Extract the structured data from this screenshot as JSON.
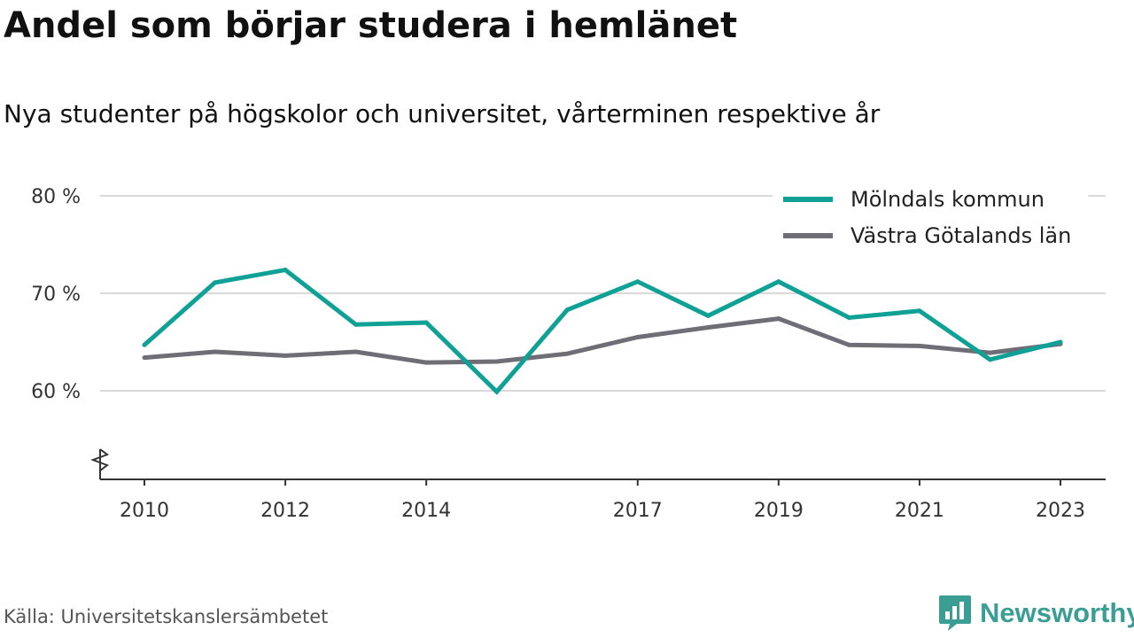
{
  "header": {
    "title": "Andel som börjar studera i hemlänet",
    "subtitle": "Nya studenter på högskolor och universitet, vårterminen respektive år"
  },
  "footer": {
    "source": "Källa: Universitetskanslersämbetet",
    "brand": "Newsworthy",
    "brand_icon": "bar-chart-speech-bubble-icon"
  },
  "colors": {
    "molndal": "#0fa096",
    "vgr": "#6f6e76",
    "grid": "#d9d9d9",
    "brand": "#3a9e95"
  },
  "chart_data": {
    "type": "line",
    "title": "Andel som börjar studera i hemlänet",
    "subtitle": "Nya studenter på högskolor och universitet, vårterminen respektive år",
    "x": [
      2010,
      2011,
      2012,
      2013,
      2014,
      2015,
      2016,
      2017,
      2018,
      2019,
      2020,
      2021,
      2022,
      2023
    ],
    "x_ticks": [
      2010,
      2012,
      2014,
      2017,
      2019,
      2021,
      2023
    ],
    "y_ticks": [
      {
        "value": 60,
        "label": "60 %"
      },
      {
        "value": 70,
        "label": "70 %"
      },
      {
        "value": 80,
        "label": "80 %"
      }
    ],
    "ylim": [
      51,
      82
    ],
    "axis_break": true,
    "grid": "horizontal",
    "legend_position": "top-right",
    "series": [
      {
        "name": "Mölndals kommun",
        "color": "#0fa096",
        "values": [
          64.7,
          71.1,
          72.4,
          66.8,
          67.0,
          59.9,
          68.3,
          71.2,
          67.7,
          71.2,
          67.5,
          68.2,
          63.2,
          65.0
        ]
      },
      {
        "name": "Västra Götalands län",
        "color": "#6f6e76",
        "values": [
          63.4,
          64.0,
          63.6,
          64.0,
          62.9,
          63.0,
          63.8,
          65.5,
          66.5,
          67.4,
          64.7,
          64.6,
          63.9,
          64.8
        ]
      }
    ]
  }
}
